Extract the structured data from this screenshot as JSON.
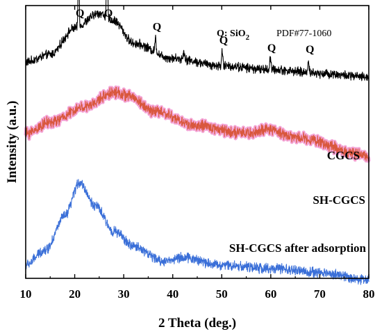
{
  "chart_data": {
    "type": "line",
    "xlabel": "2 Theta (deg.)",
    "ylabel": "Intensity (a.u.)",
    "xlim": [
      10,
      80
    ],
    "xticks": [
      "10",
      "20",
      "30",
      "40",
      "50",
      "60",
      "70",
      "80"
    ],
    "yticks_shown": false,
    "legend": {
      "phase_label_prefix": "Q: SiO",
      "phase_label_subscript": "2",
      "pdf_card": "PDF#77-1060",
      "placement": "top-right"
    },
    "peak_marker": "Q",
    "peaks": [
      {
        "two_theta": 20.8,
        "label": "Q"
      },
      {
        "two_theta": 26.6,
        "label": "Q"
      },
      {
        "two_theta": 36.5,
        "label": "Q"
      },
      {
        "two_theta": 50.1,
        "label": "Q"
      },
      {
        "two_theta": 59.9,
        "label": "Q"
      },
      {
        "two_theta": 67.7,
        "label": "Q"
      }
    ],
    "series": [
      {
        "name": "CGCS",
        "color": "#000000",
        "offset": 0.55,
        "baseline": [
          [
            10,
            0.02
          ],
          [
            15,
            0.04
          ],
          [
            20,
            0.11
          ],
          [
            25,
            0.15
          ],
          [
            28,
            0.13
          ],
          [
            32,
            0.07
          ],
          [
            40,
            0.03
          ],
          [
            50,
            0.01
          ],
          [
            60,
            0.0
          ],
          [
            70,
            -0.01
          ],
          [
            80,
            -0.02
          ]
        ],
        "peaks": [
          [
            20.8,
            0.21,
            0.25
          ],
          [
            26.6,
            0.62,
            0.2
          ],
          [
            36.5,
            0.04,
            0.3
          ],
          [
            42.3,
            0.02,
            0.4
          ],
          [
            50.1,
            0.04,
            0.3
          ],
          [
            59.9,
            0.03,
            0.3
          ],
          [
            67.7,
            0.035,
            0.3
          ]
        ]
      },
      {
        "name": "SH-CGCS",
        "color": "#d9573d",
        "offset": 0.36,
        "baseline": [
          [
            10,
            0.02
          ],
          [
            15,
            0.05
          ],
          [
            22,
            0.09
          ],
          [
            28,
            0.13
          ],
          [
            31,
            0.12
          ],
          [
            36,
            0.08
          ],
          [
            45,
            0.04
          ],
          [
            55,
            0.02
          ],
          [
            60,
            0.03
          ],
          [
            65,
            0.01
          ],
          [
            80,
            -0.04
          ]
        ],
        "peaks": []
      },
      {
        "name": "SH-CGCS after adsorption",
        "color": "#3a6fd8",
        "offset": 0.0,
        "baseline": [
          [
            10,
            0.03
          ],
          [
            14,
            0.07
          ],
          [
            18,
            0.16
          ],
          [
            21,
            0.25
          ],
          [
            24,
            0.19
          ],
          [
            28,
            0.12
          ],
          [
            32,
            0.08
          ],
          [
            38,
            0.04
          ],
          [
            42,
            0.05
          ],
          [
            50,
            0.03
          ],
          [
            60,
            0.02
          ],
          [
            70,
            0.01
          ],
          [
            80,
            -0.01
          ]
        ],
        "peaks": []
      }
    ]
  }
}
